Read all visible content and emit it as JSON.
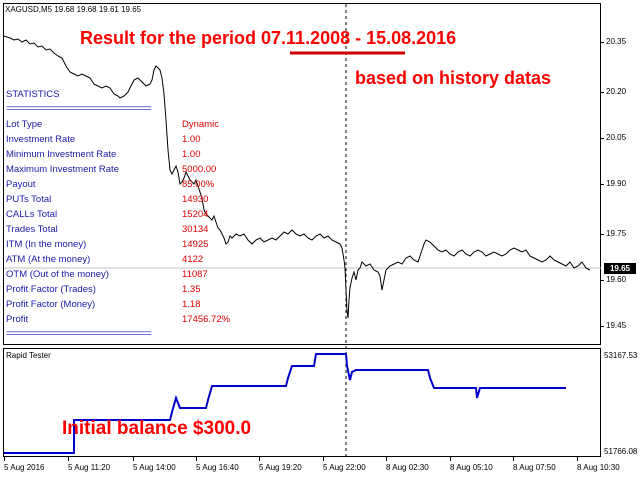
{
  "header": {
    "ohlc": "XAGUSD,M5  19.68 19.68 19.61 19.65"
  },
  "banner": {
    "result_prefix": "Result for the period ",
    "result_dates": "07.11.2008 - 15.08.2016",
    "history": "based on history datas",
    "initial_balance": "Initial balance $300.0"
  },
  "statistics": {
    "title": "STATISTICS",
    "separator": "==================================",
    "rows": [
      {
        "label": "Lot Type",
        "value": "Dynamic"
      },
      {
        "label": "Investment Rate",
        "value": "1.00"
      },
      {
        "label": "Minimum Investment Rate",
        "value": "1.00"
      },
      {
        "label": "Maximum Investment Rate",
        "value": "5000.00"
      },
      {
        "label": "Payout",
        "value": "85.00%"
      },
      {
        "label": "PUTs Total",
        "value": "14930"
      },
      {
        "label": "CALLs Total",
        "value": "15204"
      },
      {
        "label": "Trades Total",
        "value": "30134"
      },
      {
        "label": "ITM (In the money)",
        "value": "14925"
      },
      {
        "label": "ATM (At the money)",
        "value": "4122"
      },
      {
        "label": "OTM (Out of the money)",
        "value": "11087"
      },
      {
        "label": "Profit Factor (Trades)",
        "value": "1.35"
      },
      {
        "label": "Profit Factor (Money)",
        "value": "1.18"
      },
      {
        "label": "Profit",
        "value": "17456.72%"
      }
    ]
  },
  "price_axis": {
    "ticks": [
      "20.35",
      "20.20",
      "20.05",
      "19.90",
      "19.75",
      "19.60",
      "19.45"
    ],
    "current_price": "19.65"
  },
  "sub_window": {
    "title": "Rapid Tester",
    "max": "53167.53",
    "min": "51766.08"
  },
  "time_axis": {
    "labels": [
      "5 Aug 2016",
      "5 Aug 11:20",
      "5 Aug 14:00",
      "5 Aug 16:40",
      "5 Aug 19:20",
      "5 Aug 22:00",
      "8 Aug 02:30",
      "8 Aug 05:10",
      "8 Aug 07:50",
      "8 Aug 10:30"
    ]
  },
  "colors": {
    "banner_red": "#ff0000",
    "stat_label_blue": "#1a1aa8",
    "stat_value_red": "#dd0000",
    "balance_line": "#0000cc",
    "price_line": "#000000"
  }
}
